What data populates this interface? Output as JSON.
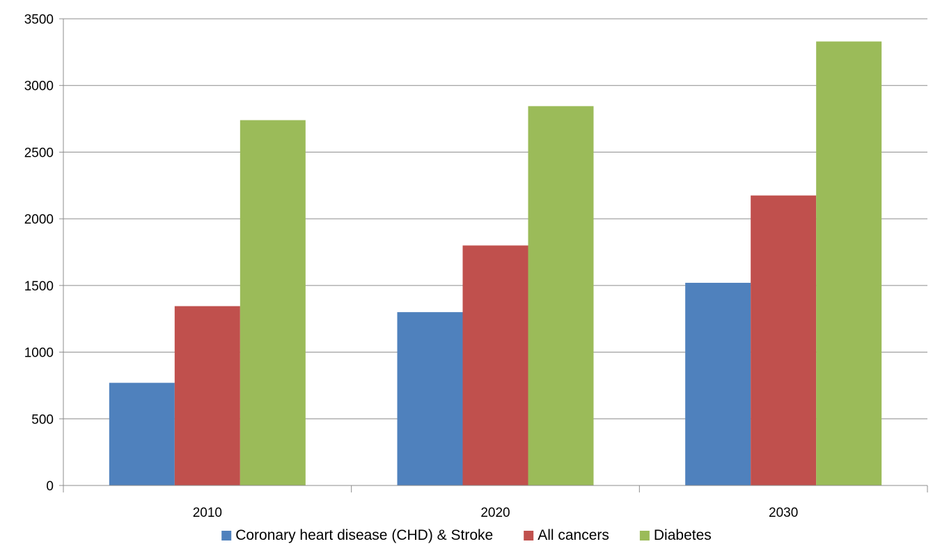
{
  "chart_data": {
    "type": "bar",
    "categories": [
      "2010",
      "2020",
      "2030"
    ],
    "series": [
      {
        "name": "Coronary heart disease (CHD) & Stroke",
        "values": [
          770,
          1300,
          1520
        ],
        "color": "#4f81bd"
      },
      {
        "name": "All cancers",
        "values": [
          1345,
          1800,
          2175
        ],
        "color": "#c0504d"
      },
      {
        "name": "Diabetes",
        "values": [
          2740,
          2845,
          3330
        ],
        "color": "#9bbb59"
      }
    ],
    "title": "",
    "xlabel": "",
    "ylabel": "",
    "ylim": [
      0,
      3500
    ],
    "yticks": [
      0,
      500,
      1000,
      1500,
      2000,
      2500,
      3000,
      3500
    ],
    "grid": true,
    "legend_position": "bottom"
  }
}
